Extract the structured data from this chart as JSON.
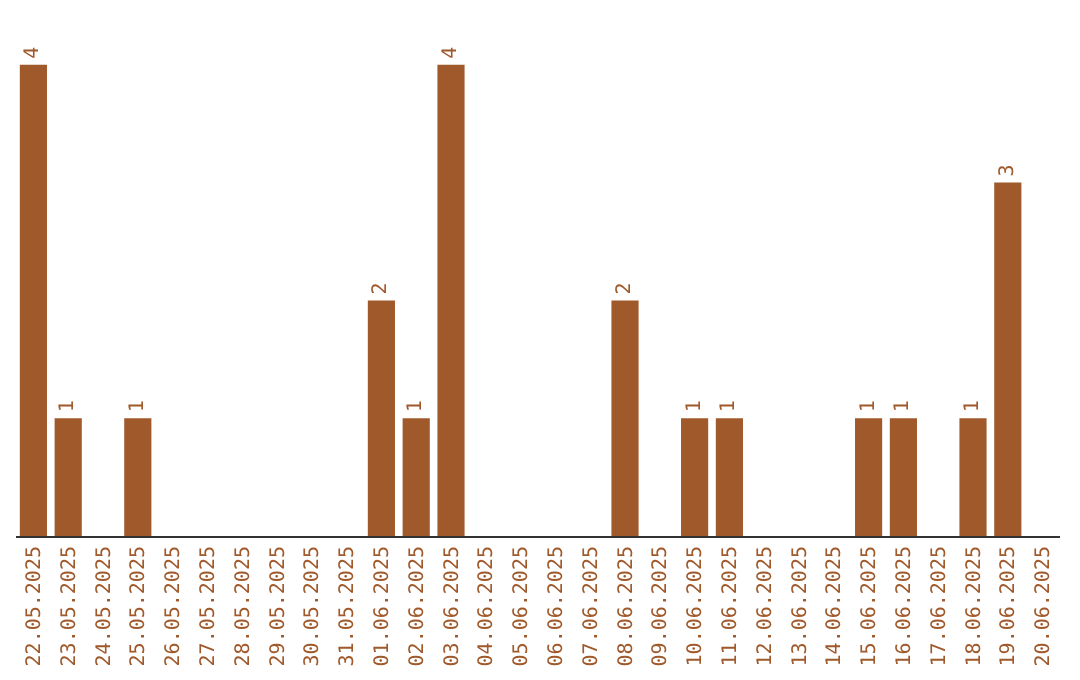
{
  "chart_data": {
    "type": "bar",
    "categories": [
      "22.05.2025",
      "23.05.2025",
      "24.05.2025",
      "25.05.2025",
      "26.05.2025",
      "27.05.2025",
      "28.05.2025",
      "29.05.2025",
      "30.05.2025",
      "31.05.2025",
      "01.06.2025",
      "02.06.2025",
      "03.06.2025",
      "04.06.2025",
      "05.06.2025",
      "06.06.2025",
      "07.06.2025",
      "08.06.2025",
      "09.06.2025",
      "10.06.2025",
      "11.06.2025",
      "12.06.2025",
      "13.06.2025",
      "14.06.2025",
      "15.06.2025",
      "16.06.2025",
      "17.06.2025",
      "18.06.2025",
      "19.06.2025",
      "20.06.2025"
    ],
    "values": [
      4,
      1,
      0,
      1,
      0,
      0,
      0,
      0,
      0,
      0,
      2,
      1,
      4,
      0,
      0,
      0,
      0,
      2,
      0,
      1,
      1,
      0,
      0,
      0,
      1,
      1,
      0,
      1,
      3,
      0
    ],
    "value_labels": [
      "4",
      "1",
      null,
      "1",
      null,
      null,
      null,
      null,
      null,
      null,
      "2",
      "1",
      "4",
      null,
      null,
      null,
      null,
      "2",
      null,
      "1",
      "1",
      null,
      null,
      null,
      "1",
      "1",
      null,
      "1",
      "3",
      null
    ],
    "color": "#a0592b"
  }
}
